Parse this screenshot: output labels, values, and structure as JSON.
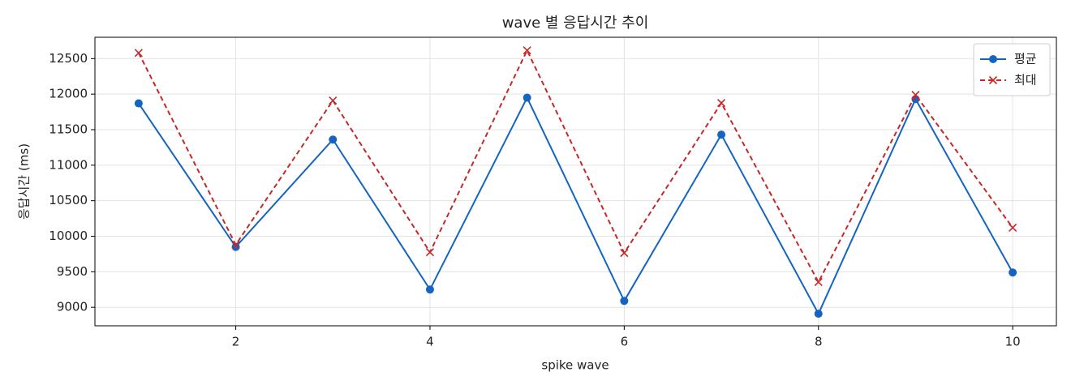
{
  "chart_data": {
    "type": "line",
    "title": "wave 별 응답시간 추이",
    "x_label": "spike wave",
    "y_label": "응답시간 (ms)",
    "x": [
      1,
      2,
      3,
      4,
      5,
      6,
      7,
      8,
      9,
      10
    ],
    "series": [
      {
        "name": "평균",
        "color": "#1565c0",
        "marker": "o",
        "dash": false,
        "values": [
          11870,
          9850,
          11360,
          9250,
          11950,
          9090,
          11430,
          8910,
          11930,
          9490
        ]
      },
      {
        "name": "최대",
        "color": "#c62828",
        "marker": "x",
        "dash": true,
        "values": [
          12580,
          9880,
          11910,
          9775,
          12615,
          9765,
          11875,
          9355,
          11990,
          10120
        ]
      }
    ],
    "xlim": [
      0.55,
      10.45
    ],
    "xticks": [
      2,
      4,
      6,
      8,
      10
    ],
    "ylim": [
      8740,
      12800
    ],
    "yticks": [
      9000,
      9500,
      10000,
      10500,
      11000,
      11500,
      12000,
      12500
    ],
    "grid": true,
    "legend": "upper right"
  }
}
